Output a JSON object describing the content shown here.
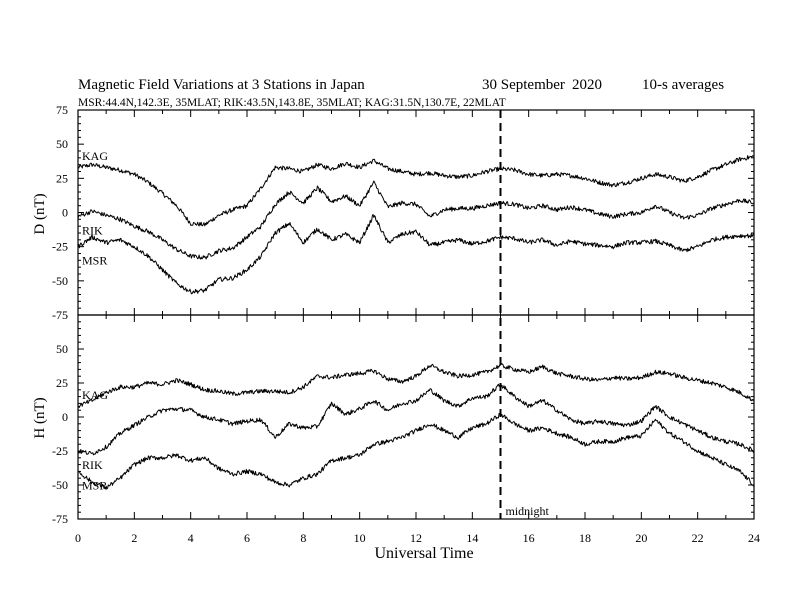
{
  "header": {
    "title": "Magnetic Field Variations at 3 Stations in Japan",
    "date": "30 September",
    "year": "2020",
    "averaging": "10-s averages",
    "stations_line": "MSR:44.4N,142.3E, 35MLAT;  RIK:43.5N,143.8E, 35MLAT;  KAG:31.5N,130.7E, 22MLAT"
  },
  "chart_data": [
    {
      "type": "line",
      "panel": "D",
      "ylabel": "D (nT)",
      "ylim": [
        -75,
        75
      ],
      "yticks": [
        75,
        50,
        25,
        0,
        -25,
        -50,
        -75
      ],
      "xlim": [
        0,
        24
      ],
      "series": [
        {
          "name": "KAG",
          "x": [
            0,
            0.5,
            1,
            1.5,
            2,
            2.5,
            3,
            3.5,
            4,
            4.5,
            5,
            5.5,
            6,
            6.5,
            7,
            7.5,
            8,
            8.5,
            9,
            9.5,
            10,
            10.5,
            11,
            11.5,
            12,
            12.5,
            13,
            13.5,
            14,
            14.5,
            15,
            15.5,
            16,
            16.5,
            17,
            17.5,
            18,
            18.5,
            19,
            19.5,
            20,
            20.5,
            21,
            21.5,
            22,
            22.5,
            23,
            23.5,
            24
          ],
          "values": [
            33,
            35,
            33,
            31,
            28,
            22,
            14,
            5,
            -8,
            -9,
            -2,
            2,
            5,
            18,
            33,
            32,
            30,
            35,
            32,
            36,
            33,
            38,
            32,
            30,
            28,
            29,
            27,
            26,
            27,
            30,
            32,
            31,
            28,
            27,
            28,
            27,
            25,
            22,
            20,
            22,
            25,
            28,
            26,
            23,
            26,
            31,
            35,
            39,
            41
          ]
        },
        {
          "name": "RIK",
          "x": [
            0,
            0.5,
            1,
            1.5,
            2,
            2.5,
            3,
            3.5,
            4,
            4.5,
            5,
            5.5,
            6,
            6.5,
            7,
            7.5,
            8,
            8.5,
            9,
            9.5,
            10,
            10.5,
            11,
            11.5,
            12,
            12.5,
            13,
            13.5,
            14,
            14.5,
            15,
            15.5,
            16,
            16.5,
            17,
            17.5,
            18,
            18.5,
            19,
            19.5,
            20,
            20.5,
            21,
            21.5,
            22,
            22.5,
            23,
            23.5,
            24
          ],
          "values": [
            -3,
            1,
            -2,
            -5,
            -10,
            -14,
            -20,
            -27,
            -32,
            -33,
            -28,
            -26,
            -18,
            -10,
            6,
            15,
            7,
            18,
            8,
            12,
            5,
            22,
            4,
            7,
            6,
            -3,
            2,
            3,
            3,
            5,
            7,
            6,
            3,
            5,
            2,
            4,
            2,
            -1,
            -3,
            -1,
            0,
            5,
            0,
            -4,
            -2,
            3,
            6,
            9,
            7
          ]
        },
        {
          "name": "MSR",
          "x": [
            0,
            0.5,
            1,
            1.5,
            2,
            2.5,
            3,
            3.5,
            4,
            4.5,
            5,
            5.5,
            6,
            6.5,
            7,
            7.5,
            8,
            8.5,
            9,
            9.5,
            10,
            10.5,
            11,
            11.5,
            12,
            12.5,
            13,
            13.5,
            14,
            14.5,
            15,
            15.5,
            16,
            16.5,
            17,
            17.5,
            18,
            18.5,
            19,
            19.5,
            20,
            20.5,
            21,
            21.5,
            22,
            22.5,
            23,
            23.5,
            24
          ],
          "values": [
            -25,
            -18,
            -22,
            -20,
            -25,
            -32,
            -42,
            -52,
            -58,
            -57,
            -49,
            -48,
            -42,
            -32,
            -15,
            -8,
            -22,
            -12,
            -20,
            -16,
            -22,
            -2,
            -22,
            -16,
            -14,
            -24,
            -22,
            -20,
            -23,
            -21,
            -18,
            -19,
            -22,
            -20,
            -24,
            -21,
            -23,
            -24,
            -25,
            -22,
            -22,
            -21,
            -24,
            -28,
            -25,
            -20,
            -18,
            -17,
            -17
          ]
        }
      ]
    },
    {
      "type": "line",
      "panel": "H",
      "ylabel": "H (nT)",
      "ylim": [
        -75,
        75
      ],
      "yticks": [
        75,
        50,
        25,
        0,
        -25,
        -50,
        -75
      ],
      "xlim": [
        0,
        24
      ],
      "xticks": [
        0,
        2,
        4,
        6,
        8,
        10,
        12,
        14,
        16,
        18,
        20,
        22,
        24
      ],
      "xlabel": "Universal Time",
      "annotation": {
        "x": 15,
        "label": "midnight"
      },
      "series": [
        {
          "name": "KAG",
          "x": [
            0,
            0.5,
            1,
            1.5,
            2,
            2.5,
            3,
            3.5,
            4,
            4.5,
            5,
            5.5,
            6,
            6.5,
            7,
            7.5,
            8,
            8.5,
            9,
            9.5,
            10,
            10.5,
            11,
            11.5,
            12,
            12.5,
            13,
            13.5,
            14,
            14.5,
            15,
            15.5,
            16,
            16.5,
            17,
            17.5,
            18,
            18.5,
            19,
            19.5,
            20,
            20.5,
            21,
            21.5,
            22,
            22.5,
            23,
            23.5,
            24
          ],
          "values": [
            8,
            12,
            18,
            22,
            22,
            25,
            24,
            27,
            24,
            20,
            19,
            17,
            18,
            19,
            19,
            18,
            22,
            30,
            29,
            31,
            32,
            34,
            28,
            26,
            30,
            38,
            33,
            30,
            31,
            33,
            38,
            35,
            33,
            37,
            32,
            30,
            28,
            27,
            29,
            28,
            29,
            33,
            32,
            29,
            27,
            25,
            22,
            18,
            12
          ]
        },
        {
          "name": "RIK",
          "x": [
            0,
            0.5,
            1,
            1.5,
            2,
            2.5,
            3,
            3.5,
            4,
            4.5,
            5,
            5.5,
            6,
            6.5,
            7,
            7.5,
            8,
            8.5,
            9,
            9.5,
            10,
            10.5,
            11,
            11.5,
            12,
            12.5,
            13,
            13.5,
            14,
            14.5,
            15,
            15.5,
            16,
            16.5,
            17,
            17.5,
            18,
            18.5,
            19,
            19.5,
            20,
            20.5,
            21,
            21.5,
            22,
            22.5,
            23,
            23.5,
            24
          ],
          "values": [
            -25,
            -27,
            -22,
            -12,
            -6,
            0,
            5,
            6,
            5,
            0,
            -2,
            -5,
            -3,
            -2,
            -15,
            -5,
            -8,
            -7,
            10,
            2,
            6,
            12,
            5,
            10,
            12,
            20,
            12,
            8,
            14,
            15,
            24,
            15,
            8,
            12,
            5,
            -2,
            -5,
            -3,
            -5,
            -6,
            -3,
            8,
            0,
            -5,
            -10,
            -15,
            -18,
            -20,
            -25
          ]
        },
        {
          "name": "MSR",
          "x": [
            0,
            0.5,
            1,
            1.5,
            2,
            2.5,
            3,
            3.5,
            4,
            4.5,
            5,
            5.5,
            6,
            6.5,
            7,
            7.5,
            8,
            8.5,
            9,
            9.5,
            10,
            10.5,
            11,
            11.5,
            12,
            12.5,
            13,
            13.5,
            14,
            14.5,
            15,
            15.5,
            16,
            16.5,
            17,
            17.5,
            18,
            18.5,
            19,
            19.5,
            20,
            20.5,
            21,
            21.5,
            22,
            22.5,
            23,
            23.5,
            24
          ],
          "values": [
            -40,
            -48,
            -52,
            -45,
            -35,
            -30,
            -30,
            -28,
            -32,
            -30,
            -38,
            -42,
            -40,
            -42,
            -48,
            -50,
            -45,
            -42,
            -32,
            -30,
            -28,
            -20,
            -18,
            -15,
            -10,
            -5,
            -10,
            -15,
            -8,
            -5,
            2,
            -5,
            -10,
            -8,
            -12,
            -15,
            -20,
            -18,
            -18,
            -15,
            -14,
            -2,
            -12,
            -18,
            -25,
            -30,
            -35,
            -40,
            -50
          ]
        }
      ]
    }
  ]
}
